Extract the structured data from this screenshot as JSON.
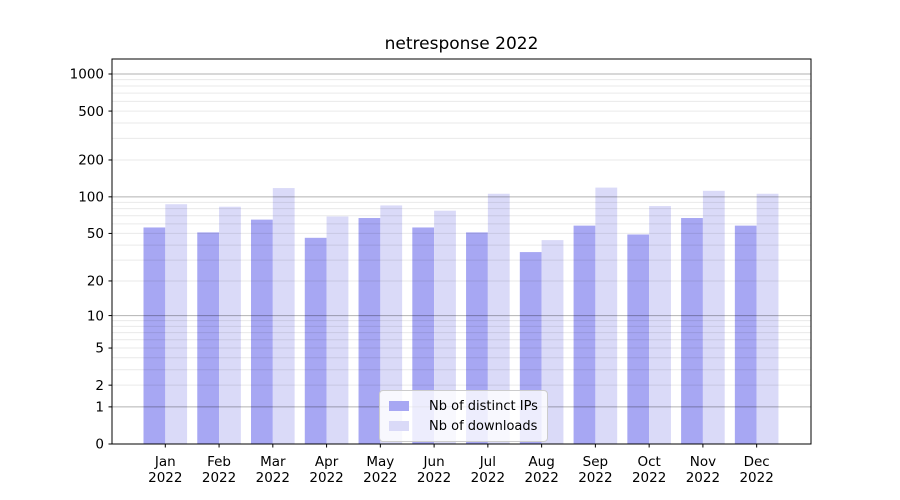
{
  "chart_data": {
    "type": "bar",
    "title": "netresponse 2022",
    "scale": "log1p",
    "grid": "both",
    "legend_position": "lower center inside",
    "categories": [
      "Jan",
      "Feb",
      "Mar",
      "Apr",
      "May",
      "Jun",
      "Jul",
      "Aug",
      "Sep",
      "Oct",
      "Nov",
      "Dec"
    ],
    "year_label": "2022",
    "series": [
      {
        "name": "Nb of distinct IPs",
        "color": "#a7a7f3",
        "values": [
          56,
          51,
          65,
          46,
          67,
          56,
          51,
          35,
          58,
          49,
          67,
          58
        ]
      },
      {
        "name": "Nb of downloads",
        "color": "#dadaf8",
        "values": [
          87,
          83,
          118,
          69,
          85,
          77,
          106,
          44,
          119,
          84,
          112,
          106
        ]
      }
    ],
    "y_ticks": [
      0,
      1,
      2,
      5,
      10,
      20,
      50,
      100,
      200,
      500,
      1000
    ],
    "ylim": [
      0,
      1100
    ],
    "colors": {
      "grid_major": "#b5b5b5",
      "grid_minor": "#e8e8e8",
      "axis": "#000000",
      "background": "#ffffff"
    }
  }
}
